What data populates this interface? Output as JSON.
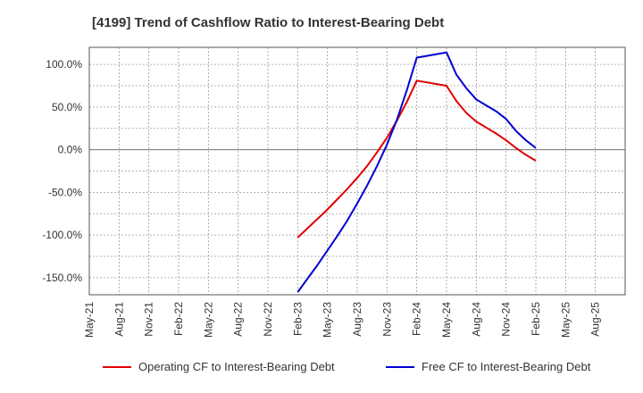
{
  "chart_data": {
    "type": "line",
    "title": "[4199]  Trend of Cashflow Ratio to Interest-Bearing Debt",
    "xlabel": "",
    "ylabel": "",
    "ylim": [
      -170,
      120
    ],
    "y_ticks": [
      -150,
      -100,
      -50,
      0,
      50,
      100
    ],
    "y_tick_labels": [
      "-150.0%",
      "-100.0%",
      "-50.0%",
      "0.0%",
      "50.0%",
      "100.0%"
    ],
    "x_tick_labels": [
      "May-21",
      "Aug-21",
      "Nov-21",
      "Feb-22",
      "May-22",
      "Aug-22",
      "Nov-22",
      "Feb-23",
      "May-23",
      "Aug-23",
      "Nov-23",
      "Feb-24",
      "May-24",
      "Aug-24",
      "Nov-24",
      "Feb-25",
      "May-25",
      "Aug-25"
    ],
    "grid": true,
    "legend_position": "bottom",
    "x": [
      "Feb-23",
      "Mar-23",
      "Apr-23",
      "May-23",
      "Jun-23",
      "Jul-23",
      "Aug-23",
      "Sep-23",
      "Oct-23",
      "Nov-23",
      "Dec-23",
      "Jan-24",
      "Feb-24",
      "Mar-24",
      "Apr-24",
      "May-24",
      "Jun-24",
      "Jul-24",
      "Aug-24",
      "Sep-24",
      "Oct-24",
      "Nov-24",
      "Dec-24",
      "Jan-25",
      "Feb-25"
    ],
    "series": [
      {
        "name": "Operating CF to Interest-Bearing Debt",
        "color": "#e00000",
        "values": [
          -103,
          -92,
          -81,
          -70,
          -58,
          -46,
          -33,
          -19,
          -3,
          14,
          34,
          56,
          81,
          79,
          77,
          75,
          57,
          43,
          33,
          26,
          19,
          11,
          2,
          -6,
          -13
        ]
      },
      {
        "name": "Free CF to Interest-Bearing Debt",
        "color": "#0000d0",
        "values": [
          -167,
          -151,
          -135,
          -118,
          -101,
          -83,
          -63,
          -42,
          -19,
          6,
          35,
          70,
          108,
          110,
          112,
          114,
          88,
          72,
          59,
          52,
          45,
          36,
          22,
          11,
          2
        ]
      }
    ]
  }
}
